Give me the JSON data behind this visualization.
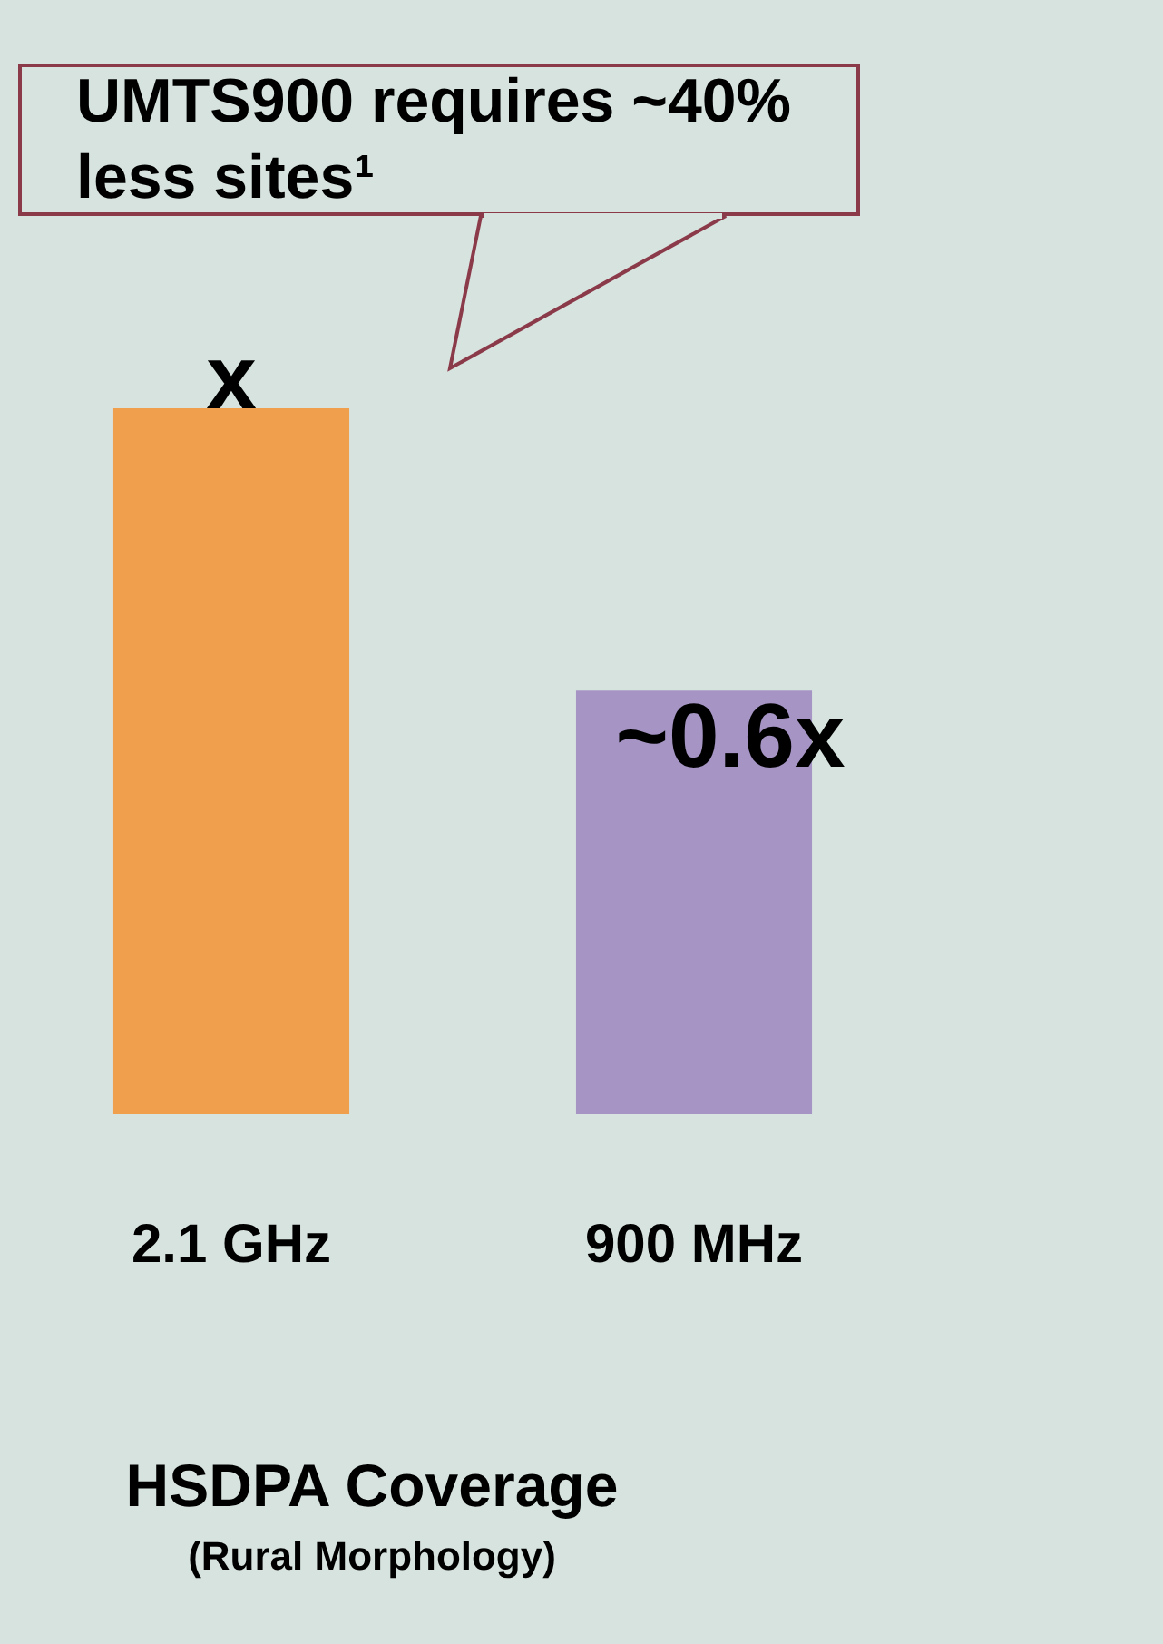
{
  "chart_data": {
    "type": "bar",
    "tick_labels": "x",
    "categories": [
      "2.1 GHz",
      "900 MHz"
    ],
    "values": [
      1,
      0.6
    ],
    "colors": [
      "#f0a04c",
      "#a594c4"
    ],
    "value_labels": [
      "x",
      "~0.6x"
    ],
    "xlabel": "HSDPA Coverage",
    "subtitle": "(Rural Morphology)",
    "annotations": [
      "UMTS900 requires ~40% less sites¹"
    ]
  }
}
